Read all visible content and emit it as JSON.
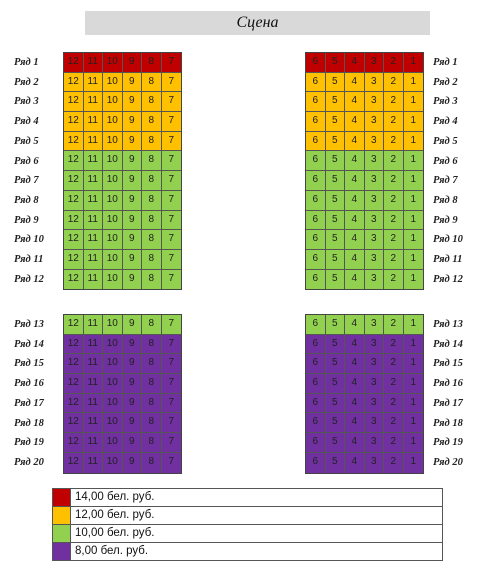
{
  "stage": {
    "label": "Сцена"
  },
  "colors": {
    "red": "#c00000",
    "orange": "#ffc000",
    "green": "#92d050",
    "purple": "#7030a0"
  },
  "left_seat_numbers": [
    "12",
    "11",
    "10",
    "9",
    "8",
    "7"
  ],
  "right_seat_numbers": [
    "6",
    "5",
    "4",
    "3",
    "2",
    "1"
  ],
  "upper_rows": [
    {
      "label": "Ряд 1",
      "price": "red"
    },
    {
      "label": "Ряд 2",
      "price": "orange"
    },
    {
      "label": "Ряд 3",
      "price": "orange"
    },
    {
      "label": "Ряд 4",
      "price": "orange"
    },
    {
      "label": "Ряд 5",
      "price": "orange"
    },
    {
      "label": "Ряд 6",
      "price": "green"
    },
    {
      "label": "Ряд 7",
      "price": "green"
    },
    {
      "label": "Ряд 8",
      "price": "green"
    },
    {
      "label": "Ряд 9",
      "price": "green"
    },
    {
      "label": "Ряд 10",
      "price": "green"
    },
    {
      "label": "Ряд 11",
      "price": "green"
    },
    {
      "label": "Ряд 12",
      "price": "green"
    }
  ],
  "lower_rows": [
    {
      "label": "Ряд 13",
      "price": "green"
    },
    {
      "label": "Ряд 14",
      "price": "purple"
    },
    {
      "label": "Ряд 15",
      "price": "purple"
    },
    {
      "label": "Ряд 16",
      "price": "purple"
    },
    {
      "label": "Ряд 17",
      "price": "purple"
    },
    {
      "label": "Ряд 18",
      "price": "purple"
    },
    {
      "label": "Ряд 19",
      "price": "purple"
    },
    {
      "label": "Ряд 20",
      "price": "purple"
    }
  ],
  "legend": [
    {
      "color": "red",
      "label": "14,00 бел. руб."
    },
    {
      "color": "orange",
      "label": "12,00 бел. руб."
    },
    {
      "color": "green",
      "label": "10,00 бел. руб."
    },
    {
      "color": "purple",
      "label": "8,00 бел. руб."
    }
  ]
}
